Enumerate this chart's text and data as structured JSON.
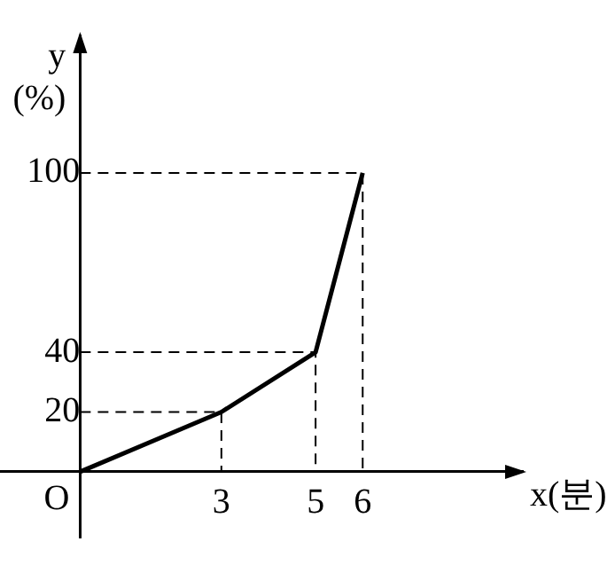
{
  "chart_data": {
    "type": "line",
    "xlabel": "x(분)",
    "ylabel": "y (%)",
    "x": [
      0,
      3,
      5,
      6
    ],
    "series": [
      {
        "color": "#000000",
        "values": [
          0,
          20,
          40,
          100
        ]
      },
      {
        "color": "#000000",
        "x": [
          0,
          3,
          3
        ],
        "values": [
          20,
          20,
          0
        ],
        "line_style": "dashed"
      },
      {
        "color": "#000000",
        "x": [
          0,
          5,
          5
        ],
        "values": [
          40,
          40,
          0
        ],
        "line_style": "dashed"
      },
      {
        "color": "#000000",
        "x": [
          0,
          6,
          6
        ],
        "values": [
          100,
          100,
          0
        ],
        "line_style": "dashed"
      }
    ],
    "xlim": [
      -1.7,
      9.4
    ],
    "ylim": [
      -22,
      146
    ],
    "xticks": [
      3,
      5,
      6
    ],
    "yticks": [
      20,
      40,
      100
    ],
    "annotations": [
      {
        "text": "O",
        "x": 0,
        "y": 0
      }
    ],
    "grid": false,
    "legend": false,
    "marker": "none",
    "line_style": "solid"
  }
}
